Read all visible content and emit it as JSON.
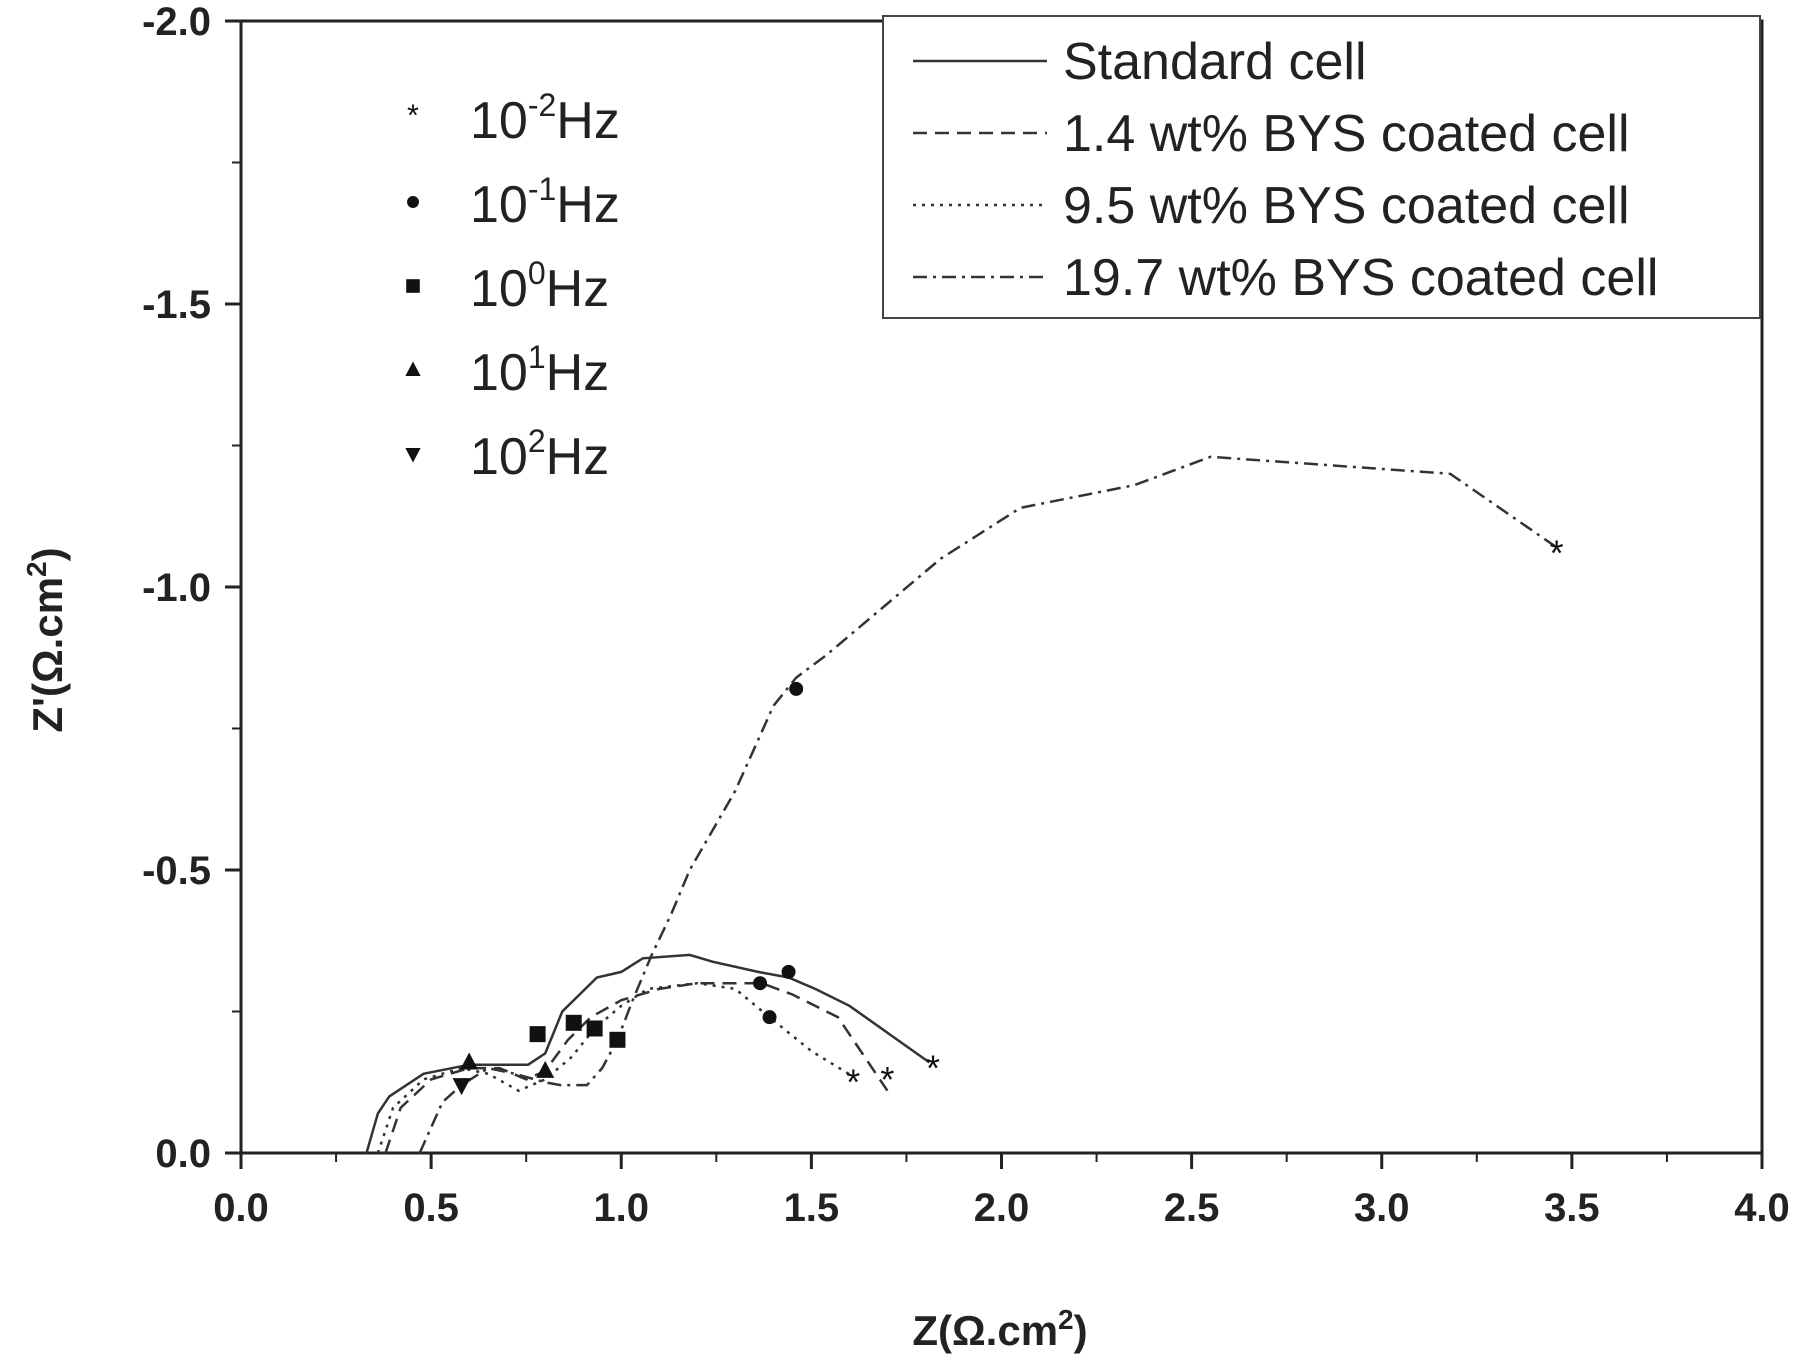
{
  "chart_data": {
    "type": "line",
    "title": "",
    "xlabel": "Z(Ω.cm²)",
    "xlabel_main": "Z(Ω.cm",
    "xlabel_sup": "2",
    "xlabel_end": ")",
    "ylabel": "Z'(Ω.cm²)",
    "ylabel_main": "Z'(Ω.cm",
    "ylabel_sup": "2",
    "ylabel_end": ")",
    "xlim": [
      0,
      4
    ],
    "ylim": [
      0,
      -2
    ],
    "grid": false,
    "xticks": [
      "0.0",
      "0.5",
      "1.0",
      "1.5",
      "2.0",
      "2.5",
      "3.0",
      "3.5",
      "4.0"
    ],
    "yticks": [
      "0.0",
      "-0.5",
      "-1.0",
      "-1.5",
      "-2.0"
    ],
    "legend_position": "top-right",
    "series": [
      {
        "name": "Standard cell",
        "style": "solid",
        "points": [
          [
            0.33,
            0
          ],
          [
            0.36,
            -0.07
          ],
          [
            0.39,
            -0.1
          ],
          [
            0.48,
            -0.14
          ],
          [
            0.6,
            -0.156
          ],
          [
            0.755,
            -0.156
          ],
          [
            0.8,
            -0.176
          ],
          [
            0.845,
            -0.25
          ],
          [
            0.936,
            -0.31
          ],
          [
            1.0,
            -0.32
          ],
          [
            1.057,
            -0.344
          ],
          [
            1.18,
            -0.35
          ],
          [
            1.24,
            -0.338
          ],
          [
            1.36,
            -0.32
          ],
          [
            1.44,
            -0.31
          ],
          [
            1.51,
            -0.29
          ],
          [
            1.6,
            -0.26
          ],
          [
            1.81,
            -0.16
          ]
        ],
        "markers": [
          {
            "freq": "10^1",
            "shape": "triangle-up",
            "x": 0.6,
            "y": -0.16
          },
          {
            "freq": "10^0",
            "shape": "square",
            "x": 0.78,
            "y": -0.21
          },
          {
            "freq": "10^-1",
            "shape": "circle",
            "x": 1.44,
            "y": -0.32
          },
          {
            "freq": "10^-2",
            "shape": "star",
            "x": 1.82,
            "y": -0.16
          }
        ]
      },
      {
        "name": "1.4 wt% BYS coated cell",
        "style": "dashed",
        "points": [
          [
            0.38,
            0
          ],
          [
            0.42,
            -0.08
          ],
          [
            0.5,
            -0.13
          ],
          [
            0.6,
            -0.15
          ],
          [
            0.68,
            -0.15
          ],
          [
            0.75,
            -0.13
          ],
          [
            0.8,
            -0.145
          ],
          [
            0.86,
            -0.2
          ],
          [
            0.92,
            -0.24
          ],
          [
            1.0,
            -0.27
          ],
          [
            1.1,
            -0.29
          ],
          [
            1.2,
            -0.3
          ],
          [
            1.37,
            -0.3
          ],
          [
            1.45,
            -0.28
          ],
          [
            1.57,
            -0.24
          ],
          [
            1.62,
            -0.19
          ],
          [
            1.7,
            -0.11
          ]
        ],
        "markers": [
          {
            "freq": "10^1",
            "shape": "triangle-up",
            "x": 0.8,
            "y": -0.145
          },
          {
            "freq": "10^0",
            "shape": "square",
            "x": 0.875,
            "y": -0.23
          },
          {
            "freq": "10^-1",
            "shape": "circle",
            "x": 1.365,
            "y": -0.3
          },
          {
            "freq": "10^-2",
            "shape": "star",
            "x": 1.7,
            "y": -0.14
          }
        ]
      },
      {
        "name": "9.5 wt% BYS coated cell",
        "style": "dotted",
        "points": [
          [
            0.36,
            0
          ],
          [
            0.4,
            -0.08
          ],
          [
            0.48,
            -0.13
          ],
          [
            0.58,
            -0.15
          ],
          [
            0.65,
            -0.14
          ],
          [
            0.73,
            -0.11
          ],
          [
            0.8,
            -0.13
          ],
          [
            0.87,
            -0.17
          ],
          [
            0.93,
            -0.22
          ],
          [
            1.0,
            -0.26
          ],
          [
            1.07,
            -0.29
          ],
          [
            1.2,
            -0.3
          ],
          [
            1.3,
            -0.29
          ],
          [
            1.39,
            -0.24
          ],
          [
            1.5,
            -0.18
          ],
          [
            1.61,
            -0.135
          ]
        ],
        "markers": [
          {
            "freq": "10^0",
            "shape": "square",
            "x": 0.93,
            "y": -0.22
          },
          {
            "freq": "10^-1",
            "shape": "circle",
            "x": 1.39,
            "y": -0.24
          },
          {
            "freq": "10^-2",
            "shape": "star",
            "x": 1.61,
            "y": -0.135
          }
        ]
      },
      {
        "name": "19.7 wt% BYS coated cell",
        "style": "dashdot",
        "points": [
          [
            0.47,
            0
          ],
          [
            0.53,
            -0.09
          ],
          [
            0.58,
            -0.12
          ],
          [
            0.65,
            -0.15
          ],
          [
            0.72,
            -0.14
          ],
          [
            0.8,
            -0.125
          ],
          [
            0.84,
            -0.12
          ],
          [
            0.91,
            -0.12
          ],
          [
            0.95,
            -0.15
          ],
          [
            0.99,
            -0.2
          ],
          [
            1.03,
            -0.27
          ],
          [
            1.08,
            -0.35
          ],
          [
            1.13,
            -0.42
          ],
          [
            1.18,
            -0.5
          ],
          [
            1.3,
            -0.64
          ],
          [
            1.4,
            -0.79
          ],
          [
            1.46,
            -0.84
          ],
          [
            1.54,
            -0.88
          ],
          [
            1.84,
            -1.05
          ],
          [
            2.05,
            -1.14
          ],
          [
            2.35,
            -1.18
          ],
          [
            2.55,
            -1.23
          ],
          [
            3.18,
            -1.2
          ],
          [
            3.46,
            -1.07
          ]
        ],
        "markers": [
          {
            "freq": "10^2",
            "shape": "triangle-down",
            "x": 0.58,
            "y": -0.12
          },
          {
            "freq": "10^0",
            "shape": "square",
            "x": 0.99,
            "y": -0.2
          },
          {
            "freq": "10^-1",
            "shape": "circle",
            "x": 1.46,
            "y": -0.82
          },
          {
            "freq": "10^-2",
            "shape": "star",
            "x": 3.46,
            "y": -1.07
          }
        ]
      }
    ],
    "frequency_legend": [
      {
        "shape": "star",
        "base": "10",
        "exp": "-2",
        "unit": "Hz"
      },
      {
        "shape": "circle",
        "base": "10",
        "exp": "-1",
        "unit": "Hz"
      },
      {
        "shape": "square",
        "base": "10",
        "exp": "0",
        "unit": "Hz"
      },
      {
        "shape": "triangle-up",
        "base": "10",
        "exp": "1",
        "unit": "Hz"
      },
      {
        "shape": "triangle-down",
        "base": "10",
        "exp": "2",
        "unit": "Hz"
      }
    ]
  }
}
